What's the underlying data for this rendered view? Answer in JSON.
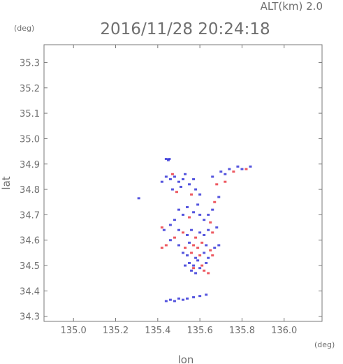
{
  "header": {
    "alt_label": "ALT(km) 2.0",
    "timestamp": "2016/11/28 20:24:18",
    "y_unit": "(deg)",
    "x_unit": "(deg)"
  },
  "chart_data": {
    "type": "scatter",
    "title": "2016/11/28 20:24:18",
    "xlabel": "lon",
    "ylabel": "lat",
    "xlim": [
      134.86,
      136.18
    ],
    "ylim": [
      34.28,
      35.37
    ],
    "x_ticks": [
      "135.0",
      "135.2",
      "135.4",
      "135.6",
      "135.8",
      "136.0"
    ],
    "x_tick_values": [
      135.0,
      135.2,
      135.4,
      135.6,
      135.8,
      136.0
    ],
    "y_ticks": [
      "34.3",
      "34.4",
      "34.5",
      "34.6",
      "34.7",
      "34.8",
      "34.9",
      "35.0",
      "35.1",
      "35.2",
      "35.3"
    ],
    "y_tick_values": [
      34.3,
      34.4,
      34.5,
      34.6,
      34.7,
      34.8,
      34.9,
      35.0,
      35.1,
      35.2,
      35.3
    ],
    "grid": false,
    "colors": {
      "positive": "#e8303a",
      "negative": "#2b2bd6",
      "neutral": "#1a1a1a",
      "axis": "#7a7a7a"
    },
    "series": [
      {
        "values": [
          [
            135.44,
            34.92,
            "n"
          ],
          [
            135.45,
            34.915,
            "n"
          ],
          [
            135.455,
            34.92,
            "n"
          ],
          [
            135.47,
            34.86,
            "p"
          ],
          [
            135.48,
            34.85,
            "n"
          ],
          [
            135.46,
            34.84,
            "n"
          ],
          [
            135.5,
            34.83,
            "n"
          ],
          [
            135.47,
            34.8,
            "n"
          ],
          [
            135.49,
            34.79,
            "p"
          ],
          [
            135.52,
            34.84,
            "n"
          ],
          [
            135.53,
            34.86,
            "n"
          ],
          [
            135.51,
            34.81,
            "n"
          ],
          [
            135.55,
            34.82,
            "n"
          ],
          [
            135.57,
            34.84,
            "n"
          ],
          [
            135.58,
            34.8,
            "n"
          ],
          [
            135.6,
            34.78,
            "n"
          ],
          [
            135.56,
            34.78,
            "p"
          ],
          [
            135.44,
            34.85,
            "n"
          ],
          [
            135.42,
            34.83,
            "n"
          ],
          [
            135.66,
            34.85,
            "n"
          ],
          [
            135.68,
            34.82,
            "p"
          ],
          [
            135.7,
            34.87,
            "n"
          ],
          [
            135.72,
            34.86,
            "n"
          ],
          [
            135.74,
            34.88,
            "n"
          ],
          [
            135.76,
            34.87,
            "p"
          ],
          [
            135.78,
            34.89,
            "n"
          ],
          [
            135.8,
            34.88,
            "n"
          ],
          [
            135.82,
            34.88,
            "p"
          ],
          [
            135.84,
            34.89,
            "n"
          ],
          [
            135.72,
            34.83,
            "p"
          ],
          [
            135.69,
            34.77,
            "n"
          ],
          [
            135.67,
            34.75,
            "p"
          ],
          [
            135.31,
            34.765,
            "n"
          ],
          [
            135.5,
            34.72,
            "n"
          ],
          [
            135.52,
            34.7,
            "n"
          ],
          [
            135.54,
            34.73,
            "n"
          ],
          [
            135.55,
            34.69,
            "p"
          ],
          [
            135.57,
            34.71,
            "n"
          ],
          [
            135.59,
            34.74,
            "n"
          ],
          [
            135.6,
            34.7,
            "n"
          ],
          [
            135.62,
            34.68,
            "n"
          ],
          [
            135.64,
            34.7,
            "n"
          ],
          [
            135.66,
            34.72,
            "n"
          ],
          [
            135.65,
            34.67,
            "p"
          ],
          [
            135.48,
            34.68,
            "n"
          ],
          [
            135.46,
            34.66,
            "n"
          ],
          [
            135.42,
            34.65,
            "p"
          ],
          [
            135.43,
            34.64,
            "n"
          ],
          [
            135.5,
            34.64,
            "n"
          ],
          [
            135.52,
            34.63,
            "p"
          ],
          [
            135.54,
            34.62,
            "n"
          ],
          [
            135.56,
            34.64,
            "n"
          ],
          [
            135.58,
            34.61,
            "p"
          ],
          [
            135.6,
            34.63,
            "n"
          ],
          [
            135.62,
            34.62,
            "n"
          ],
          [
            135.64,
            34.64,
            "n"
          ],
          [
            135.66,
            34.63,
            "p"
          ],
          [
            135.68,
            34.65,
            "n"
          ],
          [
            135.48,
            34.61,
            "p"
          ],
          [
            135.46,
            34.6,
            "n"
          ],
          [
            135.44,
            34.58,
            "p"
          ],
          [
            135.42,
            34.57,
            "p"
          ],
          [
            135.5,
            34.58,
            "n"
          ],
          [
            135.53,
            34.57,
            "p"
          ],
          [
            135.55,
            34.59,
            "n"
          ],
          [
            135.57,
            34.58,
            "p"
          ],
          [
            135.59,
            34.57,
            "p"
          ],
          [
            135.61,
            34.59,
            "p"
          ],
          [
            135.63,
            34.58,
            "n"
          ],
          [
            135.65,
            34.56,
            "p"
          ],
          [
            135.67,
            34.57,
            "n"
          ],
          [
            135.69,
            34.58,
            "n"
          ],
          [
            135.52,
            34.55,
            "n"
          ],
          [
            135.54,
            34.54,
            "n"
          ],
          [
            135.56,
            34.55,
            "p"
          ],
          [
            135.58,
            34.53,
            "n"
          ],
          [
            135.6,
            34.54,
            "p"
          ],
          [
            135.62,
            34.55,
            "n"
          ],
          [
            135.64,
            34.53,
            "n"
          ],
          [
            135.66,
            34.54,
            "p"
          ],
          [
            135.55,
            34.51,
            "n"
          ],
          [
            135.57,
            34.5,
            "n"
          ],
          [
            135.59,
            34.52,
            "n"
          ],
          [
            135.61,
            34.5,
            "p"
          ],
          [
            135.63,
            34.51,
            "n"
          ],
          [
            135.56,
            34.48,
            "n"
          ],
          [
            135.58,
            34.47,
            "n"
          ],
          [
            135.6,
            34.49,
            "n"
          ],
          [
            135.62,
            34.48,
            "p"
          ],
          [
            135.64,
            34.47,
            "p"
          ],
          [
            135.57,
            34.49,
            "p"
          ],
          [
            135.53,
            34.5,
            "n"
          ],
          [
            135.44,
            34.36,
            "n"
          ],
          [
            135.46,
            34.365,
            "n"
          ],
          [
            135.48,
            34.36,
            "n"
          ],
          [
            135.5,
            34.37,
            "n"
          ],
          [
            135.52,
            34.365,
            "n"
          ],
          [
            135.54,
            34.37,
            "n"
          ],
          [
            135.57,
            34.375,
            "n"
          ],
          [
            135.6,
            34.38,
            "n"
          ],
          [
            135.63,
            34.385,
            "n"
          ]
        ]
      }
    ]
  }
}
